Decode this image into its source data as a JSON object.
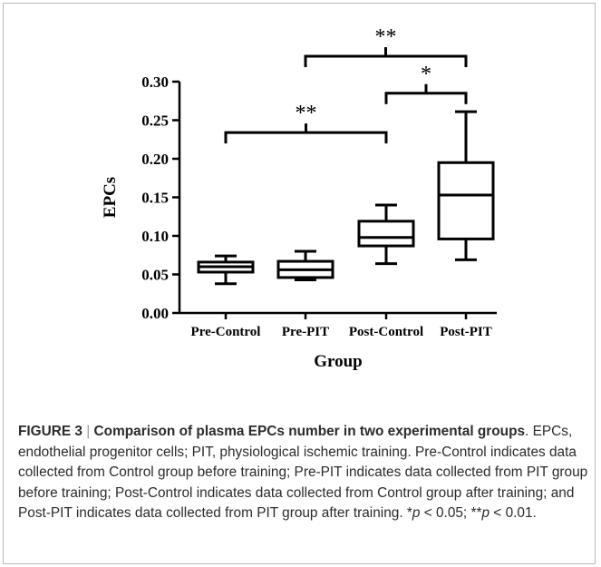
{
  "chart_data": {
    "type": "box",
    "title": "",
    "xlabel": "Group",
    "ylabel": "EPCs",
    "ylim": [
      0.0,
      0.3
    ],
    "yticks": [
      "0.00",
      "0.05",
      "0.10",
      "0.15",
      "0.20",
      "0.25",
      "0.30"
    ],
    "categories": [
      "Pre-Control",
      "Pre-PIT",
      "Post-Control",
      "Post-PIT"
    ],
    "boxes": [
      {
        "category": "Pre-Control",
        "min": 0.038,
        "q1": 0.053,
        "median": 0.06,
        "q3": 0.066,
        "max": 0.074
      },
      {
        "category": "Pre-PIT",
        "min": 0.043,
        "q1": 0.046,
        "median": 0.056,
        "q3": 0.067,
        "max": 0.08
      },
      {
        "category": "Post-Control",
        "min": 0.064,
        "q1": 0.087,
        "median": 0.098,
        "q3": 0.119,
        "max": 0.14
      },
      {
        "category": "Post-PIT",
        "min": 0.069,
        "q1": 0.096,
        "median": 0.153,
        "q3": 0.195,
        "max": 0.261
      }
    ],
    "significance": [
      {
        "from": "Pre-Control",
        "to": "Post-Control",
        "label": "**",
        "level": 0.234
      },
      {
        "from": "Post-Control",
        "to": "Post-PIT",
        "label": "*",
        "level": 0.285
      },
      {
        "from": "Pre-PIT",
        "to": "Post-PIT",
        "label": "**",
        "level": 0.333
      }
    ],
    "grid": false,
    "legend": "none"
  },
  "caption": {
    "label": "FIGURE 3",
    "separator": "|",
    "title": "Comparison of plasma EPCs number in two experimental groups",
    "text_1": ". EPCs, endothelial progenitor cells; PIT, physiological ischemic training. Pre-Control indicates data collected from Control group before training; Pre-PIT indicates data collected from PIT group before training; Post-Control indicates data collected from Control group after training; and Post-PIT indicates data collected from PIT group after training. *",
    "p1": "p",
    "text_2": " < 0.05; **",
    "p2": "p",
    "text_3": " < 0.01."
  }
}
